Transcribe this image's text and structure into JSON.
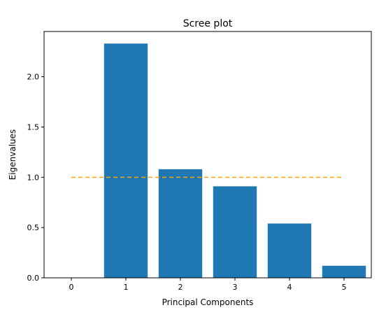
{
  "chart_data": {
    "type": "bar",
    "title": "Scree plot",
    "xlabel": "Principal Components",
    "ylabel": "Eigenvalues",
    "categories": [
      1,
      2,
      3,
      4,
      5
    ],
    "values": [
      2.33,
      1.08,
      0.91,
      0.54,
      0.12
    ],
    "bar_color": "#1f77b4",
    "xlim": [
      -0.5,
      5.5
    ],
    "ylim": [
      0,
      2.45
    ],
    "xticks": [
      "0",
      "1",
      "2",
      "3",
      "4",
      "5"
    ],
    "yticks": [
      "0.0",
      "0.5",
      "1.0",
      "1.5",
      "2.0"
    ],
    "reference_line": {
      "y": 1.0,
      "x_from": 0,
      "x_to": 5,
      "color": "#ffa500",
      "style": "dashed"
    },
    "grid": false,
    "legend": "none"
  }
}
